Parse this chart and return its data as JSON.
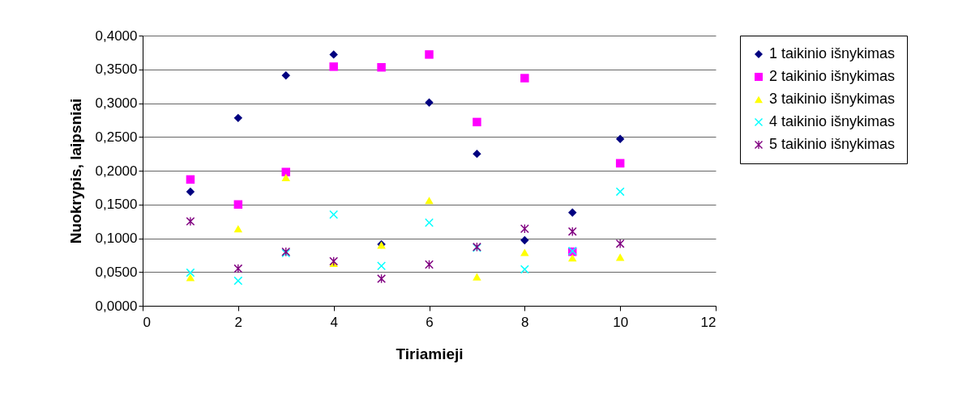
{
  "chart_data": {
    "type": "scatter",
    "xlabel": "Tiriamieji",
    "ylabel": "Nuokrypis, laipsniai",
    "x": [
      1,
      2,
      3,
      4,
      5,
      6,
      7,
      8,
      9,
      10
    ],
    "series": [
      {
        "name": "1 taikinio išnykimas",
        "color": "#000080",
        "marker": "diamond",
        "values": [
          0.169,
          0.278,
          0.341,
          0.372,
          0.091,
          0.301,
          0.225,
          0.097,
          0.138,
          0.247
        ]
      },
      {
        "name": "2 taikinio išnykimas",
        "color": "#ff00ff",
        "marker": "square",
        "values": [
          0.187,
          0.15,
          0.198,
          0.354,
          0.353,
          0.372,
          0.272,
          0.337,
          0.08,
          0.211
        ]
      },
      {
        "name": "3 taikinio išnykimas",
        "color": "#ffff00",
        "marker": "triangle",
        "values": [
          0.042,
          0.114,
          0.19,
          0.063,
          0.09,
          0.156,
          0.043,
          0.079,
          0.071,
          0.072
        ]
      },
      {
        "name": "4 taikinio išnykimas",
        "color": "#00ffff",
        "marker": "cross",
        "values": [
          0.049,
          0.037,
          0.078,
          0.135,
          0.059,
          0.123,
          0.086,
          0.054,
          0.081,
          0.169
        ]
      },
      {
        "name": "5 taikinio išnykimas",
        "color": "#800080",
        "marker": "star",
        "values": [
          0.125,
          0.055,
          0.08,
          0.066,
          0.04,
          0.061,
          0.087,
          0.114,
          0.11,
          0.092
        ]
      }
    ],
    "xlim": [
      0,
      12
    ],
    "xticks": [
      0,
      2,
      4,
      6,
      8,
      10,
      12
    ],
    "ylim": [
      0,
      0.4
    ],
    "yticks": [
      {
        "value": 0,
        "label": "0,0000"
      },
      {
        "value": 0.05,
        "label": "0,0500"
      },
      {
        "value": 0.1,
        "label": "0,1000"
      },
      {
        "value": 0.15,
        "label": "0,1500"
      },
      {
        "value": 0.2,
        "label": "0,2000"
      },
      {
        "value": 0.25,
        "label": "0,2500"
      },
      {
        "value": 0.3,
        "label": "0,3000"
      },
      {
        "value": 0.35,
        "label": "0,3500"
      },
      {
        "value": 0.4,
        "label": "0,4000"
      }
    ],
    "grid": "y",
    "legend": "right"
  }
}
